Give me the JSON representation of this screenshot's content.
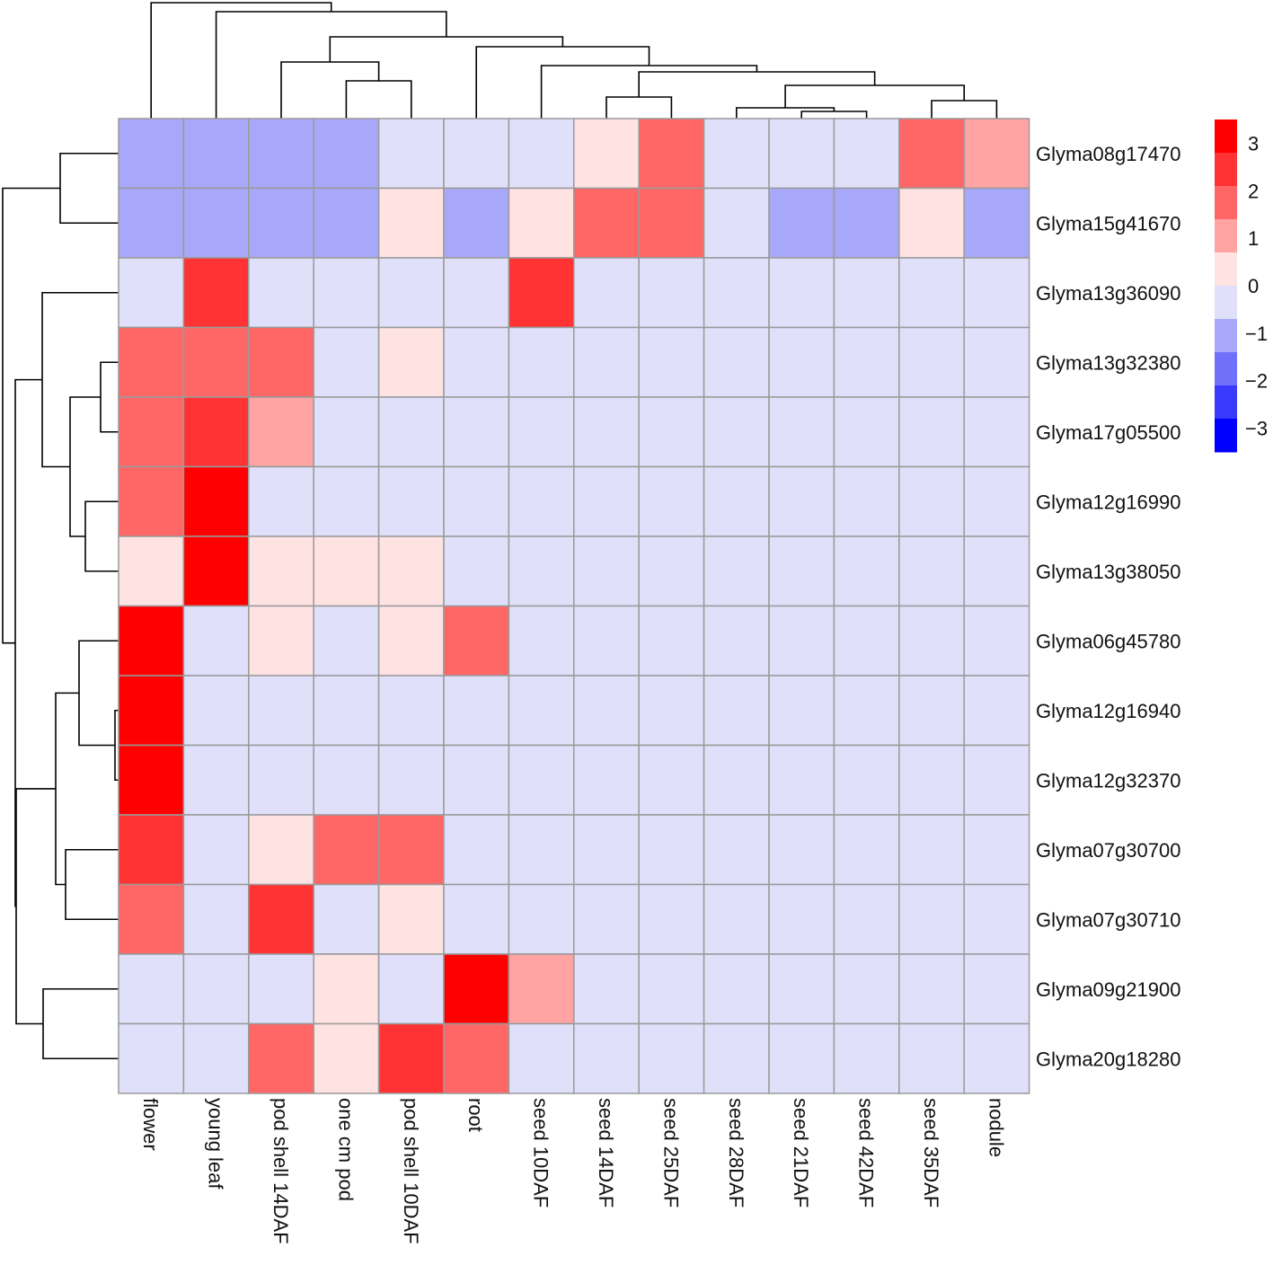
{
  "chart_data": {
    "type": "heatmap",
    "title": "",
    "rows": [
      "Glyma08g17470",
      "Glyma15g41670",
      "Glyma13g36090",
      "Glyma13g32380",
      "Glyma17g05500",
      "Glyma12g16990",
      "Glyma13g38050",
      "Glyma06g45780",
      "Glyma12g16940",
      "Glyma12g32370",
      "Glyma07g30700",
      "Glyma07g30710",
      "Glyma09g21900",
      "Glyma20g18280"
    ],
    "columns": [
      "flower",
      "young leaf",
      "pod shell 14DAF",
      "one cm pod",
      "pod shell 10DAF",
      "root",
      "seed 10DAF",
      "seed 14DAF",
      "seed 25DAF",
      "seed 28DAF",
      "seed 21DAF",
      "seed 42DAF",
      "seed 35DAF",
      "nodule"
    ],
    "values": [
      [
        -1.2,
        -1.2,
        -1.2,
        -1.3,
        -0.3,
        -0.3,
        -0.3,
        0.3,
        1.8,
        -0.3,
        -0.3,
        -0.3,
        1.8,
        1.2
      ],
      [
        -1.2,
        -1.2,
        -1.2,
        -1.2,
        0.3,
        -1.3,
        0.3,
        1.8,
        1.8,
        -0.3,
        -1.2,
        -1.2,
        0.3,
        -1.2
      ],
      [
        -0.3,
        2.6,
        -0.3,
        -0.3,
        -0.3,
        -0.3,
        2.6,
        -0.3,
        -0.3,
        -0.3,
        -0.3,
        -0.3,
        -0.3,
        -0.3
      ],
      [
        1.8,
        1.8,
        1.8,
        -0.3,
        0.3,
        -0.3,
        -0.3,
        -0.3,
        -0.3,
        -0.3,
        -0.3,
        -0.3,
        -0.3,
        -0.3
      ],
      [
        1.8,
        2.6,
        1.2,
        -0.3,
        -0.3,
        -0.3,
        -0.3,
        -0.3,
        -0.3,
        -0.3,
        -0.3,
        -0.3,
        -0.3,
        -0.3
      ],
      [
        1.8,
        3.4,
        -0.3,
        -0.3,
        -0.3,
        -0.3,
        -0.3,
        -0.3,
        -0.3,
        -0.3,
        -0.3,
        -0.3,
        -0.3,
        -0.3
      ],
      [
        0.3,
        3.4,
        0.3,
        0.3,
        0.3,
        -0.3,
        -0.3,
        -0.3,
        -0.3,
        -0.3,
        -0.3,
        -0.3,
        -0.3,
        -0.3
      ],
      [
        3.4,
        -0.3,
        0.3,
        -0.3,
        0.3,
        1.8,
        -0.3,
        -0.3,
        -0.3,
        -0.3,
        -0.3,
        -0.3,
        -0.3,
        -0.3
      ],
      [
        3.4,
        -0.3,
        -0.3,
        -0.3,
        -0.3,
        -0.3,
        -0.3,
        -0.3,
        -0.3,
        -0.3,
        -0.3,
        -0.3,
        -0.3,
        -0.3
      ],
      [
        3.4,
        -0.3,
        -0.3,
        -0.3,
        -0.3,
        -0.3,
        -0.3,
        -0.3,
        -0.3,
        -0.3,
        -0.3,
        -0.3,
        -0.3,
        -0.3
      ],
      [
        2.6,
        -0.3,
        0.3,
        1.8,
        1.8,
        -0.3,
        -0.3,
        -0.3,
        -0.3,
        -0.3,
        -0.3,
        -0.3,
        -0.3,
        -0.3
      ],
      [
        1.8,
        -0.3,
        2.6,
        -0.3,
        0.3,
        -0.3,
        -0.3,
        -0.3,
        -0.3,
        -0.3,
        -0.3,
        -0.3,
        -0.3,
        -0.3
      ],
      [
        -0.3,
        -0.3,
        -0.3,
        0.3,
        -0.3,
        3.4,
        1.2,
        -0.3,
        -0.3,
        -0.3,
        -0.3,
        -0.3,
        -0.3,
        -0.3
      ],
      [
        -0.3,
        -0.3,
        1.8,
        0.3,
        2.6,
        1.8,
        -0.3,
        -0.3,
        -0.3,
        -0.3,
        -0.3,
        -0.3,
        -0.3,
        -0.3
      ]
    ],
    "colorbar": {
      "min": -3.5,
      "max": 3.5,
      "ticks": [
        "3",
        "2",
        "1",
        "0",
        "−1",
        "−2",
        "−3"
      ],
      "bins": [
        {
          "lo": 3.0,
          "color": "#ff0000"
        },
        {
          "lo": 2.5,
          "color": "#ff3333"
        },
        {
          "lo": 1.5,
          "color": "#ff6666"
        },
        {
          "lo": 1.0,
          "color": "#ffa3a3"
        },
        {
          "lo": 0.0,
          "color": "#ffe2e2"
        },
        {
          "lo": -1.0,
          "color": "#e0e0fb"
        },
        {
          "lo": -1.5,
          "color": "#a8a8fa"
        },
        {
          "lo": -2.5,
          "color": "#7070fb"
        },
        {
          "lo": -3.0,
          "color": "#3a3afc"
        },
        {
          "lo": -99,
          "color": "#0000ff"
        }
      ]
    },
    "row_dendrogram": "clustered",
    "column_dendrogram": "clustered"
  }
}
